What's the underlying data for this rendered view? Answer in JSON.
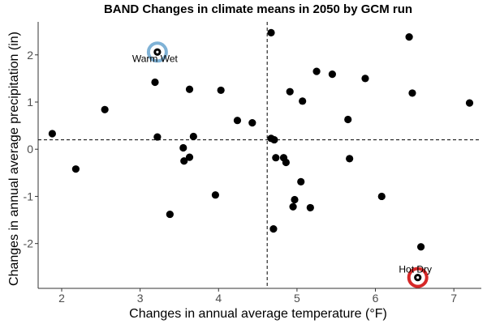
{
  "chart_data": {
    "type": "scatter",
    "title": "BAND Changes in climate means in 2050 by GCM run",
    "xlabel": "Changes in annual average temperature (°F)",
    "ylabel": "Changes in annual average precipitation (in)",
    "xlim": [
      1.7,
      7.35
    ],
    "ylim": [
      -2.95,
      2.7
    ],
    "xticks": [
      2,
      3,
      4,
      5,
      6,
      7
    ],
    "yticks": [
      -2,
      -1,
      0,
      1,
      2
    ],
    "grid": false,
    "reference_lines": {
      "x": 4.62,
      "y": 0.2
    },
    "points": [
      {
        "x": 1.88,
        "y": 0.33
      },
      {
        "x": 2.18,
        "y": -0.42
      },
      {
        "x": 2.55,
        "y": 0.84
      },
      {
        "x": 3.19,
        "y": 1.42
      },
      {
        "x": 3.22,
        "y": 0.26
      },
      {
        "x": 3.22,
        "y": 2.06
      },
      {
        "x": 3.38,
        "y": -1.38
      },
      {
        "x": 3.55,
        "y": 0.03
      },
      {
        "x": 3.56,
        "y": -0.25
      },
      {
        "x": 3.63,
        "y": 1.27
      },
      {
        "x": 3.63,
        "y": -0.17
      },
      {
        "x": 3.68,
        "y": 0.27
      },
      {
        "x": 3.96,
        "y": -0.97
      },
      {
        "x": 4.03,
        "y": 1.25
      },
      {
        "x": 4.24,
        "y": 0.61
      },
      {
        "x": 4.43,
        "y": 0.56
      },
      {
        "x": 4.67,
        "y": 2.47
      },
      {
        "x": 4.67,
        "y": 0.23
      },
      {
        "x": 4.71,
        "y": 0.2
      },
      {
        "x": 4.7,
        "y": -1.69
      },
      {
        "x": 4.73,
        "y": -0.18
      },
      {
        "x": 4.83,
        "y": -0.18
      },
      {
        "x": 4.86,
        "y": -0.28
      },
      {
        "x": 4.91,
        "y": 1.22
      },
      {
        "x": 4.95,
        "y": -1.22
      },
      {
        "x": 4.97,
        "y": -1.07
      },
      {
        "x": 5.05,
        "y": -0.69
      },
      {
        "x": 5.07,
        "y": 1.02
      },
      {
        "x": 5.17,
        "y": -1.24
      },
      {
        "x": 5.25,
        "y": 1.65
      },
      {
        "x": 5.45,
        "y": 1.59
      },
      {
        "x": 5.65,
        "y": 0.63
      },
      {
        "x": 5.67,
        "y": -0.2
      },
      {
        "x": 5.87,
        "y": 1.5
      },
      {
        "x": 6.08,
        "y": -1.0
      },
      {
        "x": 6.43,
        "y": 2.38
      },
      {
        "x": 6.47,
        "y": 1.19
      },
      {
        "x": 6.54,
        "y": -2.72
      },
      {
        "x": 6.58,
        "y": -2.07
      },
      {
        "x": 7.2,
        "y": 0.98
      }
    ],
    "highlights": [
      {
        "label": "Warm Wet",
        "x": 3.22,
        "y": 2.06,
        "color": "#7fb2d6"
      },
      {
        "label": "Hot Dry",
        "x": 6.54,
        "y": -2.72,
        "color": "#d62828"
      }
    ],
    "colors": {
      "point": "#000000",
      "axis": "#333333",
      "tick_label": "#4d4d4d"
    }
  }
}
